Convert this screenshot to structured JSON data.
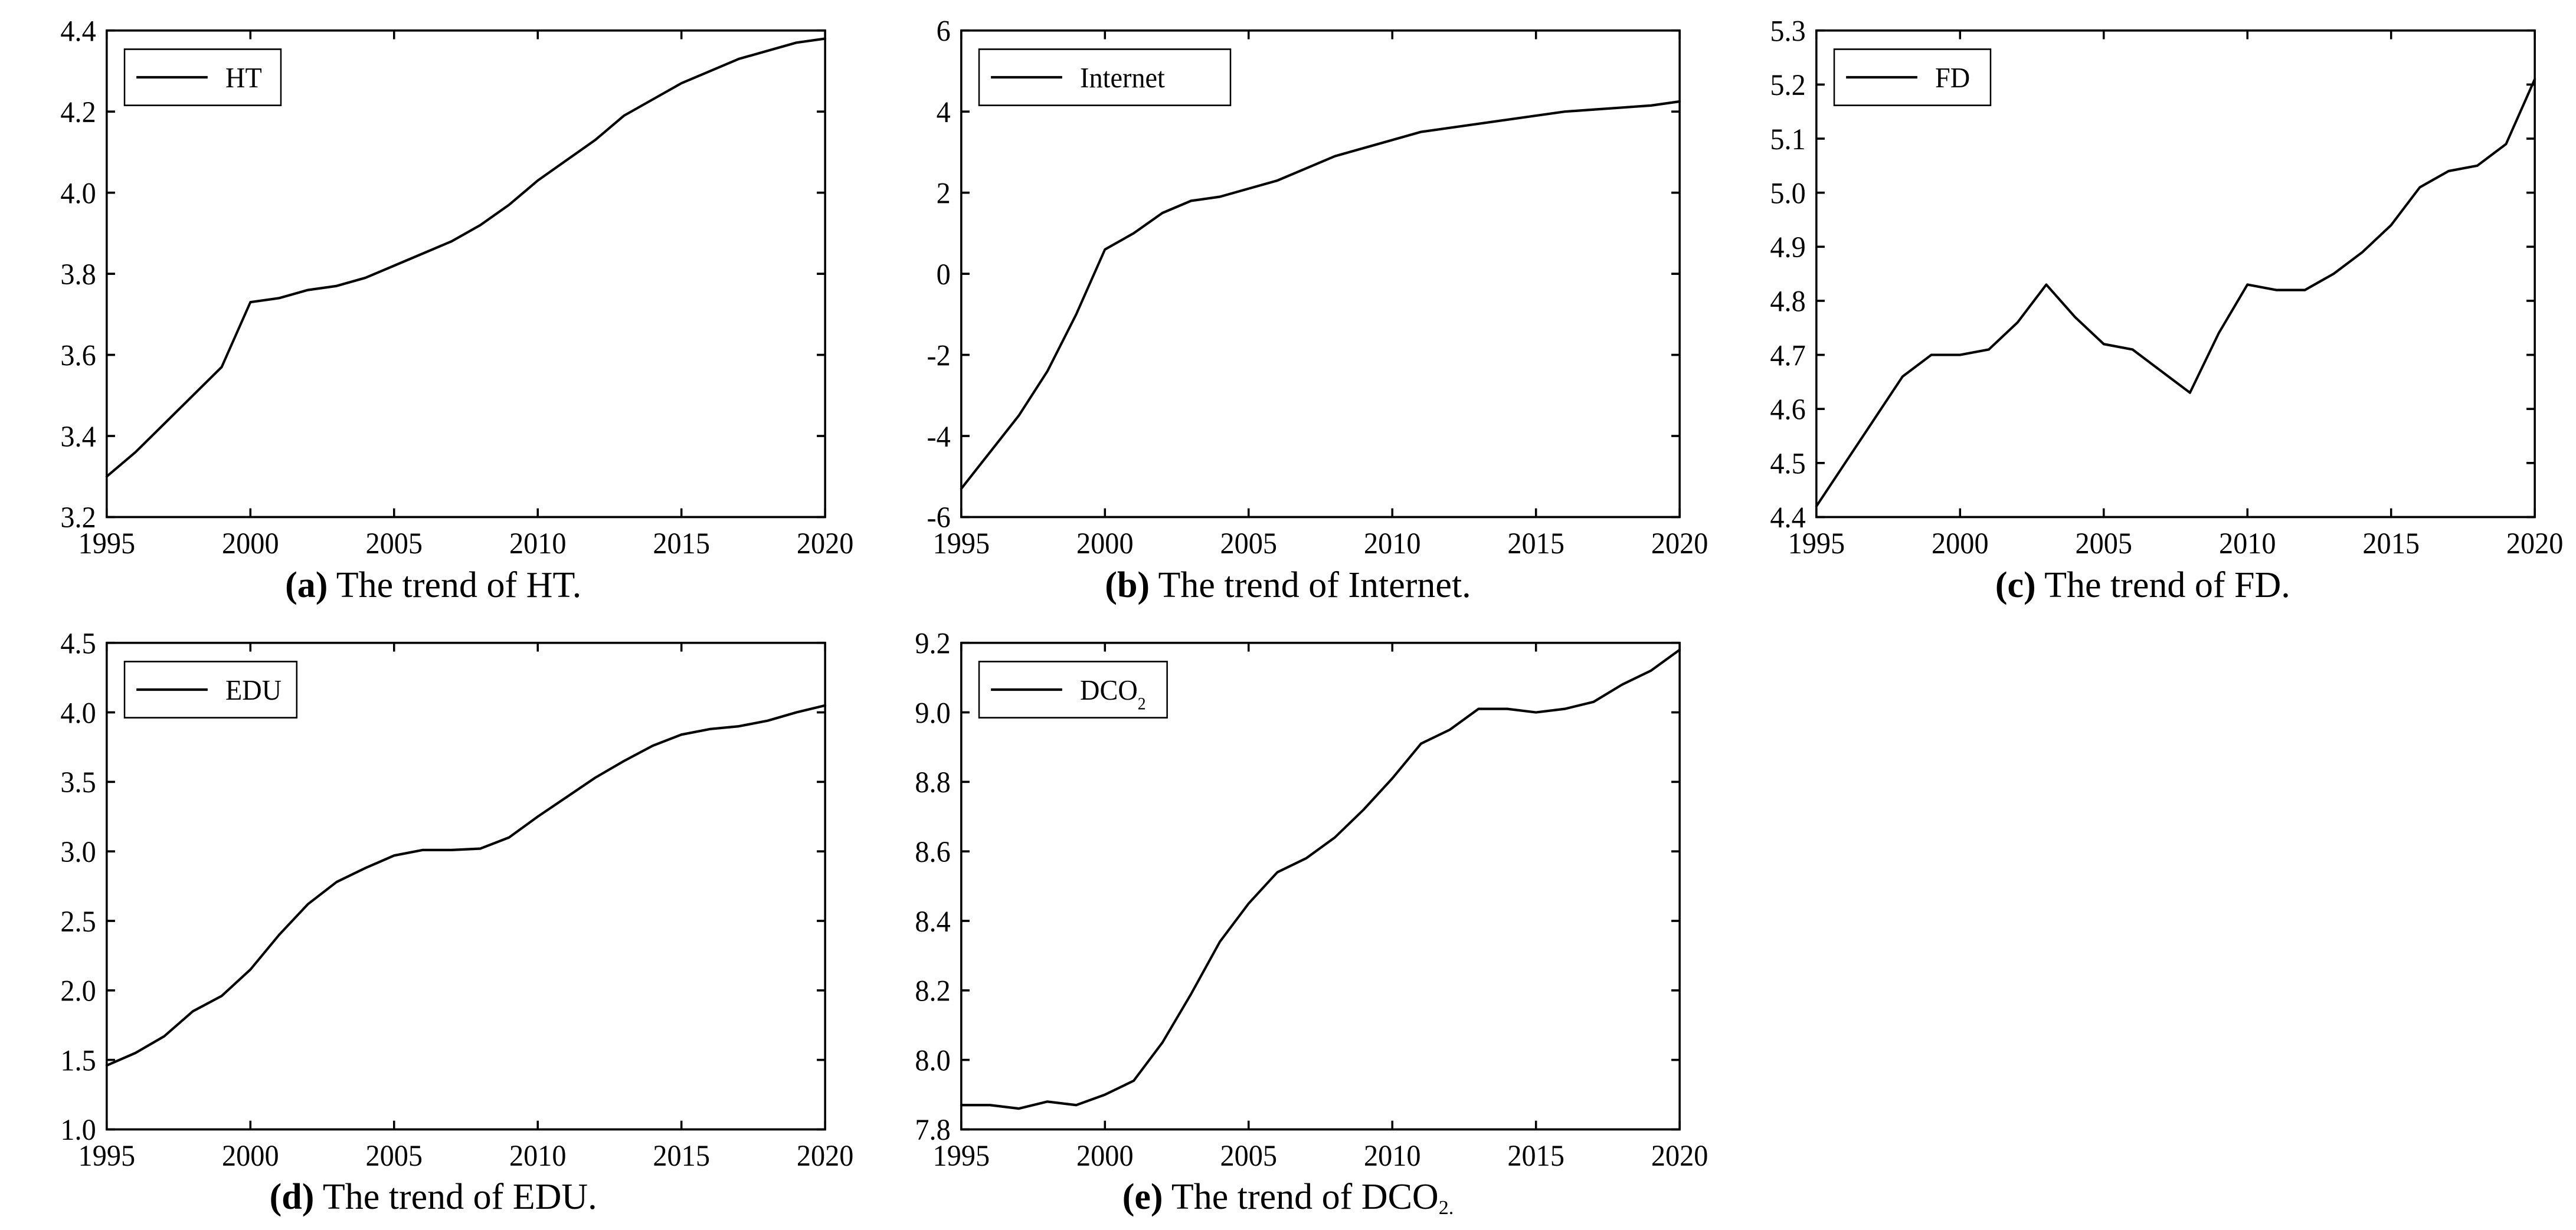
{
  "figure": {
    "background_color": "#ffffff",
    "axis_line_color": "#000000",
    "axis_line_width": 3.5,
    "series_line_color": "#000000",
    "series_line_width": 4,
    "legend_box_stroke": "#000000",
    "legend_box_width": 2.5,
    "tick_len": 14,
    "tick_fontsize": 48,
    "legend_fontsize": 46,
    "caption_fontsize": 62,
    "columns": 3,
    "rows": 2
  },
  "panels": [
    {
      "id": "a",
      "caption_prefix": "(a)",
      "caption_text": " The trend of HT.",
      "type": "line",
      "legend_label": "HT",
      "legend_has_sub": false,
      "x": {
        "lim": [
          1995,
          2020
        ],
        "ticks": [
          1995,
          2000,
          2005,
          2010,
          2015,
          2020
        ]
      },
      "y": {
        "lim": [
          3.2,
          4.4
        ],
        "ticks": [
          3.2,
          3.4,
          3.6,
          3.8,
          4.0,
          4.2,
          4.4
        ],
        "tick_labels": [
          "3.2",
          "3.4",
          "3.6",
          "3.8",
          "4.0",
          "4.2",
          "4.4"
        ]
      },
      "series": [
        {
          "x": [
            1995,
            1996,
            1997,
            1998,
            1999,
            2000,
            2001,
            2002,
            2003,
            2004,
            2005,
            2006,
            2007,
            2008,
            2009,
            2010,
            2011,
            2012,
            2013,
            2014,
            2015,
            2016,
            2017,
            2018,
            2019,
            2020
          ],
          "y": [
            3.3,
            3.36,
            3.43,
            3.5,
            3.57,
            3.73,
            3.74,
            3.76,
            3.77,
            3.79,
            3.82,
            3.85,
            3.88,
            3.92,
            3.97,
            4.03,
            4.08,
            4.13,
            4.19,
            4.23,
            4.27,
            4.3,
            4.33,
            4.35,
            4.37,
            4.38
          ]
        }
      ]
    },
    {
      "id": "b",
      "caption_prefix": "(b)",
      "caption_text": " The trend of Internet.",
      "type": "line",
      "legend_label": "Internet",
      "legend_has_sub": false,
      "x": {
        "lim": [
          1995,
          2020
        ],
        "ticks": [
          1995,
          2000,
          2005,
          2010,
          2015,
          2020
        ]
      },
      "y": {
        "lim": [
          -6,
          6
        ],
        "ticks": [
          -6,
          -4,
          -2,
          0,
          2,
          4,
          6
        ],
        "tick_labels": [
          "-6",
          "-4",
          "-2",
          "0",
          "2",
          "4",
          "6"
        ]
      },
      "series": [
        {
          "x": [
            1995,
            1996,
            1997,
            1998,
            1999,
            2000,
            2001,
            2002,
            2003,
            2004,
            2005,
            2006,
            2007,
            2008,
            2009,
            2010,
            2011,
            2012,
            2013,
            2014,
            2015,
            2016,
            2017,
            2018,
            2019,
            2020
          ],
          "y": [
            -5.3,
            -4.4,
            -3.5,
            -2.4,
            -1.0,
            0.6,
            1.0,
            1.5,
            1.8,
            1.9,
            2.1,
            2.3,
            2.6,
            2.9,
            3.1,
            3.3,
            3.5,
            3.6,
            3.7,
            3.8,
            3.9,
            4.0,
            4.05,
            4.1,
            4.15,
            4.25
          ]
        }
      ]
    },
    {
      "id": "c",
      "caption_prefix": "(c)",
      "caption_text": " The trend of FD.",
      "type": "line",
      "legend_label": "FD",
      "legend_has_sub": false,
      "x": {
        "lim": [
          1995,
          2020
        ],
        "ticks": [
          1995,
          2000,
          2005,
          2010,
          2015,
          2020
        ]
      },
      "y": {
        "lim": [
          4.4,
          5.3
        ],
        "ticks": [
          4.4,
          4.5,
          4.6,
          4.7,
          4.8,
          4.9,
          5.0,
          5.1,
          5.2,
          5.3
        ],
        "tick_labels": [
          "4.4",
          "4.5",
          "4.6",
          "4.7",
          "4.8",
          "4.9",
          "5.0",
          "5.1",
          "5.2",
          "5.3"
        ]
      },
      "series": [
        {
          "x": [
            1995,
            1996,
            1997,
            1998,
            1999,
            2000,
            2001,
            2002,
            2003,
            2004,
            2005,
            2006,
            2007,
            2008,
            2009,
            2010,
            2011,
            2012,
            2013,
            2014,
            2015,
            2016,
            2017,
            2018,
            2019,
            2020
          ],
          "y": [
            4.42,
            4.5,
            4.58,
            4.66,
            4.7,
            4.7,
            4.71,
            4.76,
            4.83,
            4.77,
            4.72,
            4.71,
            4.67,
            4.63,
            4.74,
            4.83,
            4.82,
            4.82,
            4.85,
            4.89,
            4.94,
            5.01,
            5.04,
            5.05,
            5.09,
            5.21
          ]
        }
      ]
    },
    {
      "id": "d",
      "caption_prefix": "(d)",
      "caption_text": " The trend of EDU.",
      "type": "line",
      "legend_label": "EDU",
      "legend_has_sub": false,
      "x": {
        "lim": [
          1995,
          2020
        ],
        "ticks": [
          1995,
          2000,
          2005,
          2010,
          2015,
          2020
        ]
      },
      "y": {
        "lim": [
          1.0,
          4.5
        ],
        "ticks": [
          1.0,
          1.5,
          2.0,
          2.5,
          3.0,
          3.5,
          4.0,
          4.5
        ],
        "tick_labels": [
          "1.0",
          "1.5",
          "2.0",
          "2.5",
          "3.0",
          "3.5",
          "4.0",
          "4.5"
        ]
      },
      "series": [
        {
          "x": [
            1995,
            1996,
            1997,
            1998,
            1999,
            2000,
            2001,
            2002,
            2003,
            2004,
            2005,
            2006,
            2007,
            2008,
            2009,
            2010,
            2011,
            2012,
            2013,
            2014,
            2015,
            2016,
            2017,
            2018,
            2019,
            2020
          ],
          "y": [
            1.46,
            1.55,
            1.67,
            1.85,
            1.96,
            2.15,
            2.4,
            2.62,
            2.78,
            2.88,
            2.97,
            3.01,
            3.01,
            3.02,
            3.1,
            3.25,
            3.39,
            3.53,
            3.65,
            3.76,
            3.84,
            3.88,
            3.9,
            3.94,
            4.0,
            4.05
          ]
        }
      ]
    },
    {
      "id": "e",
      "caption_prefix": "(e)",
      "caption_text": " The trend of DCO",
      "caption_sub": "2.",
      "type": "line",
      "legend_label": "DCO",
      "legend_sub": "2",
      "legend_has_sub": true,
      "x": {
        "lim": [
          1995,
          2020
        ],
        "ticks": [
          1995,
          2000,
          2005,
          2010,
          2015,
          2020
        ]
      },
      "y": {
        "lim": [
          7.8,
          9.2
        ],
        "ticks": [
          7.8,
          8.0,
          8.2,
          8.4,
          8.6,
          8.8,
          9.0,
          9.2
        ],
        "tick_labels": [
          "7.8",
          "8.0",
          "8.2",
          "8.4",
          "8.6",
          "8.8",
          "9.0",
          "9.2"
        ]
      },
      "series": [
        {
          "x": [
            1995,
            1996,
            1997,
            1998,
            1999,
            2000,
            2001,
            2002,
            2003,
            2004,
            2005,
            2006,
            2007,
            2008,
            2009,
            2010,
            2011,
            2012,
            2013,
            2014,
            2015,
            2016,
            2017,
            2018,
            2019,
            2020
          ],
          "y": [
            7.87,
            7.87,
            7.86,
            7.88,
            7.87,
            7.9,
            7.94,
            8.05,
            8.19,
            8.34,
            8.45,
            8.54,
            8.58,
            8.64,
            8.72,
            8.81,
            8.91,
            8.95,
            9.01,
            9.01,
            9.0,
            9.01,
            9.03,
            9.08,
            9.12,
            9.18
          ]
        }
      ]
    }
  ]
}
